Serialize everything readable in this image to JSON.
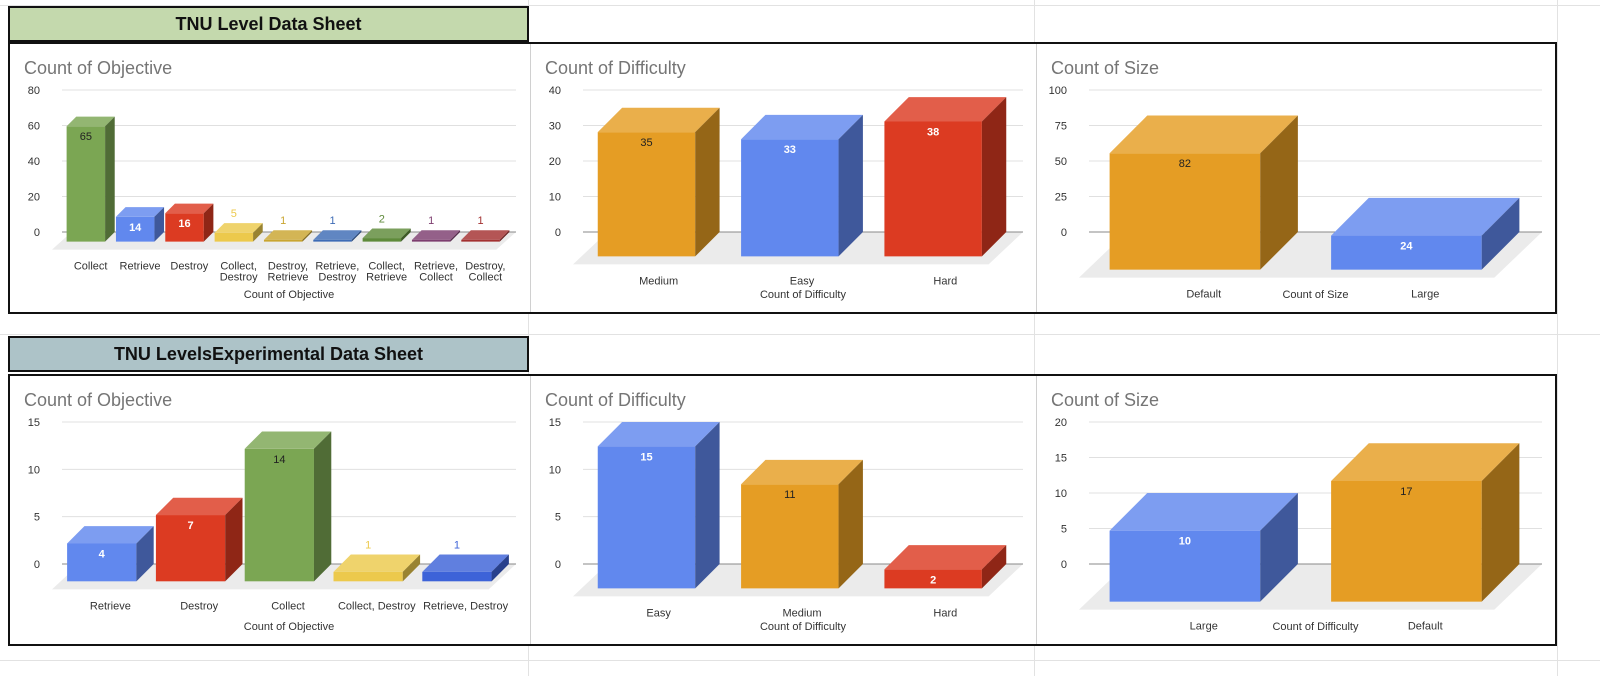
{
  "sections": [
    {
      "title": "TNU Level Data Sheet",
      "header_color": "#c4d9ad"
    },
    {
      "title": "TNU LevelsExperimental Data Sheet",
      "header_color": "#adc3c8"
    }
  ],
  "chart_data": [
    {
      "type": "bar",
      "title": "Count of Objective",
      "xlabel": "Count of Objective",
      "ylim": [
        0,
        80
      ],
      "yticks": [
        "0",
        "20",
        "40",
        "60",
        "80"
      ],
      "tick_values": [
        0,
        20,
        40,
        60,
        80
      ],
      "grid": true,
      "categories": [
        [
          "Collect"
        ],
        [
          "Retrieve"
        ],
        [
          "Destroy"
        ],
        [
          "Collect,",
          "Destroy"
        ],
        [
          "Destroy,",
          "Retrieve"
        ],
        [
          "Retrieve,",
          "Destroy"
        ],
        [
          "Collect,",
          "Retrieve"
        ],
        [
          "Retrieve,",
          "Collect"
        ],
        [
          "Destroy,",
          "Collect"
        ]
      ],
      "values": [
        65,
        14,
        16,
        5,
        1,
        1,
        2,
        1,
        1
      ],
      "data_labels": [
        "65",
        "14",
        "16",
        "5",
        "1",
        "1",
        "2",
        "1",
        "1"
      ],
      "colors": [
        "#7ba653",
        "#6188ee",
        "#dc3b22",
        "#ecc94c",
        "#c9a530",
        "#3d6bb5",
        "#5e8a3a",
        "#7d3d6f",
        "#a33030"
      ],
      "label_colors": [
        "#222222",
        "#ffffff",
        "#ffffff",
        "#ecc94c",
        "#c9a530",
        "#3d6bb5",
        "#5e8a3a",
        "#7d3d6f",
        "#a33030"
      ]
    },
    {
      "type": "bar",
      "title": "Count of Difficulty",
      "xlabel": "Count of Difficulty",
      "ylim": [
        0,
        40
      ],
      "yticks": [
        "0",
        "10",
        "20",
        "30",
        "40"
      ],
      "tick_values": [
        0,
        10,
        20,
        30,
        40
      ],
      "grid": true,
      "categories": [
        [
          "Medium"
        ],
        [
          "Easy"
        ],
        [
          "Hard"
        ]
      ],
      "values": [
        35,
        33,
        38
      ],
      "data_labels": [
        "35",
        "33",
        "38"
      ],
      "colors": [
        "#e59d24",
        "#6188ee",
        "#dc3b22"
      ],
      "label_colors": [
        "#222222",
        "#ffffff",
        "#ffffff"
      ]
    },
    {
      "type": "bar",
      "title": "Count of Size",
      "xlabel": "Count of Size",
      "ylim": [
        0,
        100
      ],
      "yticks": [
        "0",
        "25",
        "50",
        "75",
        "100"
      ],
      "tick_values": [
        0,
        25,
        50,
        75,
        100
      ],
      "grid": true,
      "categories": [
        [
          "Default"
        ],
        [
          "Large"
        ]
      ],
      "values": [
        82,
        24
      ],
      "data_labels": [
        "82",
        "24"
      ],
      "colors": [
        "#e59d24",
        "#6188ee"
      ],
      "label_colors": [
        "#222222",
        "#ffffff"
      ]
    },
    {
      "type": "bar",
      "title": "Count of Objective",
      "xlabel": "Count of Objective",
      "ylim": [
        0,
        15
      ],
      "yticks": [
        "0",
        "5",
        "10",
        "15"
      ],
      "tick_values": [
        0,
        5,
        10,
        15
      ],
      "grid": true,
      "categories": [
        [
          "Retrieve"
        ],
        [
          "Destroy"
        ],
        [
          "Collect"
        ],
        [
          "Collect, Destroy"
        ],
        [
          "Retrieve, Destroy"
        ]
      ],
      "values": [
        4,
        7,
        14,
        1,
        1
      ],
      "data_labels": [
        "4",
        "7",
        "14",
        "1",
        "1"
      ],
      "colors": [
        "#6188ee",
        "#dc3b22",
        "#7ba653",
        "#ecc94c",
        "#3d63d8"
      ],
      "label_colors": [
        "#ffffff",
        "#ffffff",
        "#222222",
        "#ecc94c",
        "#3d63d8"
      ]
    },
    {
      "type": "bar",
      "title": "Count of Difficulty",
      "xlabel": "Count of Difficulty",
      "ylim": [
        0,
        15
      ],
      "yticks": [
        "0",
        "5",
        "10",
        "15"
      ],
      "tick_values": [
        0,
        5,
        10,
        15
      ],
      "grid": true,
      "categories": [
        [
          "Easy"
        ],
        [
          "Medium"
        ],
        [
          "Hard"
        ]
      ],
      "values": [
        15,
        11,
        2
      ],
      "data_labels": [
        "15",
        "11",
        "2"
      ],
      "colors": [
        "#6188ee",
        "#e59d24",
        "#dc3b22"
      ],
      "label_colors": [
        "#ffffff",
        "#222222",
        "#ffffff"
      ]
    },
    {
      "type": "bar",
      "title": "Count of Size",
      "xlabel": "Count of Difficulty",
      "ylim": [
        0,
        20
      ],
      "yticks": [
        "0",
        "5",
        "10",
        "15",
        "20"
      ],
      "tick_values": [
        0,
        5,
        10,
        15,
        20
      ],
      "grid": true,
      "categories": [
        [
          "Large"
        ],
        [
          "Default"
        ]
      ],
      "values": [
        10,
        17
      ],
      "data_labels": [
        "10",
        "17"
      ],
      "colors": [
        "#6188ee",
        "#e59d24"
      ],
      "label_colors": [
        "#ffffff",
        "#222222"
      ]
    }
  ]
}
